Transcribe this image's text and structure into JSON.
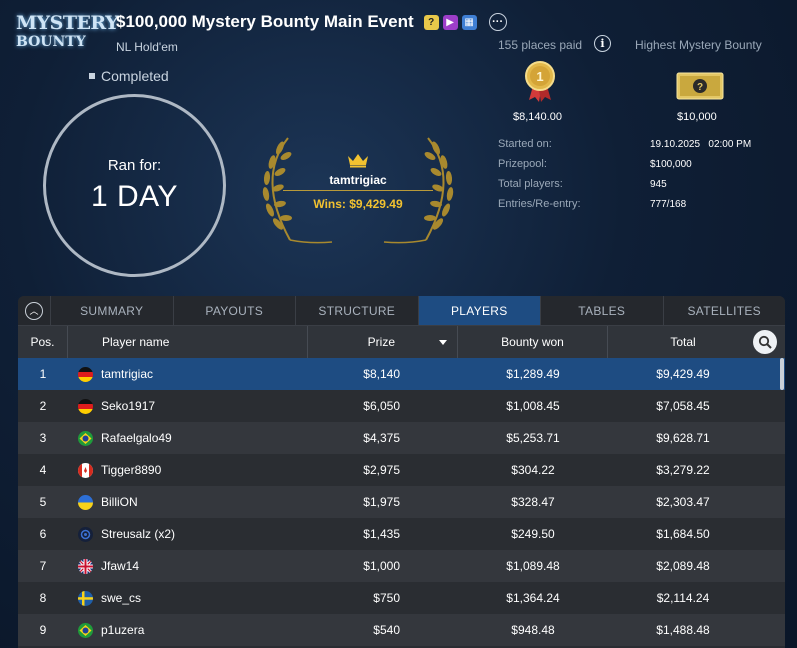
{
  "logo": {
    "line1": "MYSTERY",
    "line2": "BOUNTY"
  },
  "header": {
    "title": "$100,000 Mystery Bounty Main Event",
    "badges": [
      "?",
      "▶",
      "▦"
    ],
    "more_label": "···",
    "game_type": "NL Hold'em"
  },
  "status": "Completed",
  "ran_for": {
    "label": "Ran for:",
    "value": "1 DAY"
  },
  "winner": {
    "name": "tamtrigiac",
    "wins": "Wins: $9,429.49"
  },
  "places_paid": "155 places paid",
  "highest_bounty_label": "Highest Mystery Bounty",
  "first_prize": "$8,140.00",
  "highest_bounty": "$10,000",
  "stats": [
    {
      "label": "Started on:",
      "value": "19.10.2025   02:00 PM"
    },
    {
      "label": "Prizepool:",
      "value": "$100,000"
    },
    {
      "label": "Total players:",
      "value": "945"
    },
    {
      "label": "Entries/Re-entry:",
      "value": "777/168"
    }
  ],
  "tabs": [
    "SUMMARY",
    "PAYOUTS",
    "STRUCTURE",
    "PLAYERS",
    "TABLES",
    "SATELLITES"
  ],
  "active_tab": "PLAYERS",
  "columns": {
    "pos": "Pos.",
    "name": "Player name",
    "prize": "Prize",
    "bounty": "Bounty won",
    "total": "Total"
  },
  "colors": {
    "accent": "#1e4c82",
    "gold": "#f2c230"
  },
  "players": [
    {
      "pos": "1",
      "flag": "de",
      "name": "tamtrigiac",
      "prize": "$8,140",
      "bounty": "$1,289.49",
      "total": "$9,429.49"
    },
    {
      "pos": "2",
      "flag": "de",
      "name": "Seko1917",
      "prize": "$6,050",
      "bounty": "$1,008.45",
      "total": "$7,058.45"
    },
    {
      "pos": "3",
      "flag": "br",
      "name": "Rafaelgalo49",
      "prize": "$4,375",
      "bounty": "$5,253.71",
      "total": "$9,628.71"
    },
    {
      "pos": "4",
      "flag": "ca",
      "name": "Tigger8890",
      "prize": "$2,975",
      "bounty": "$304.22",
      "total": "$3,279.22"
    },
    {
      "pos": "5",
      "flag": "ua",
      "name": "BilliON",
      "prize": "$1,975",
      "bounty": "$328.47",
      "total": "$2,303.47"
    },
    {
      "pos": "6",
      "flag": "un",
      "name": "Streusalz (x2)",
      "prize": "$1,435",
      "bounty": "$249.50",
      "total": "$1,684.50"
    },
    {
      "pos": "7",
      "flag": "gb",
      "name": "Jfaw14",
      "prize": "$1,000",
      "bounty": "$1,089.48",
      "total": "$2,089.48"
    },
    {
      "pos": "8",
      "flag": "se",
      "name": "swe_cs",
      "prize": "$750",
      "bounty": "$1,364.24",
      "total": "$2,114.24"
    },
    {
      "pos": "9",
      "flag": "br",
      "name": "p1uzera",
      "prize": "$540",
      "bounty": "$948.48",
      "total": "$1,488.48"
    }
  ]
}
